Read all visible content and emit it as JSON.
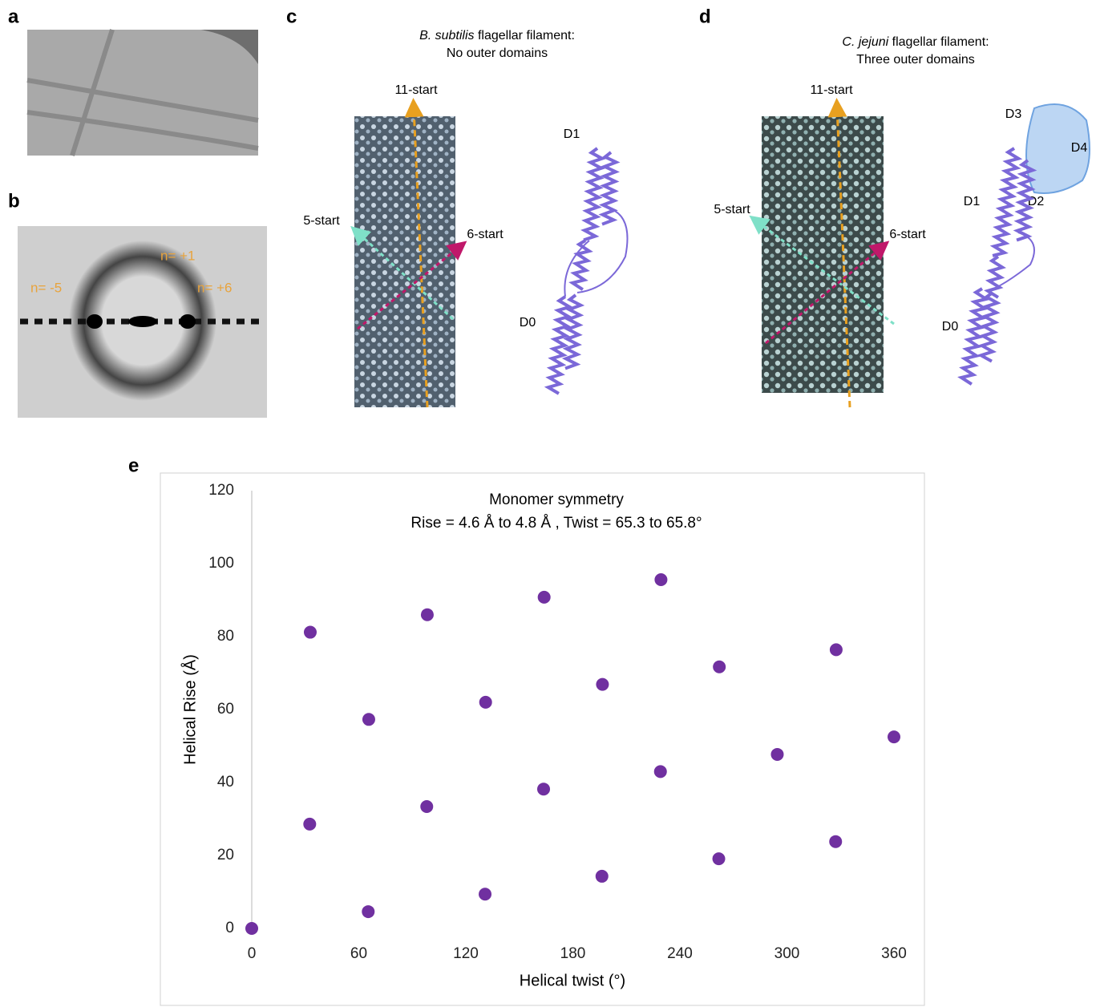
{
  "panels": {
    "a": {
      "label": "a"
    },
    "b": {
      "label": "b",
      "layer_lines": [
        "n= +1",
        "n= -5",
        "n= +6"
      ]
    },
    "c": {
      "label": "c",
      "title_species": "B. subtilis",
      "title_rest": " flagellar filament:",
      "subtitle": "No outer domains",
      "arrows": [
        "11-start",
        "5-start",
        "6-start"
      ],
      "domains": [
        "D1",
        "D0"
      ]
    },
    "d": {
      "label": "d",
      "title_species": "C. jejuni",
      "title_rest": " flagellar filament:",
      "subtitle": "Three outer domains",
      "arrows": [
        "11-start",
        "5-start",
        "6-start"
      ],
      "domains": [
        "D3",
        "D4",
        "D1",
        "D2",
        "D0"
      ]
    },
    "e": {
      "label": "e"
    }
  },
  "chart_data": {
    "type": "scatter",
    "title": "Monomer symmetry",
    "subtitle": "Rise = 4.6 Å to 4.8 Å , Twist = 65.3 to 65.8°",
    "x_label": "Helical twist (°)",
    "y_label": "Helical Rise (Å)",
    "x": [
      0,
      65.3,
      130.8,
      196.3,
      261.8,
      327.3,
      32.5,
      98.1,
      163.6,
      229.1,
      294.6,
      360,
      65.6,
      131.1,
      196.6,
      262.1,
      327.6,
      32.8,
      98.4,
      163.9,
      229.4
    ],
    "values": [
      0,
      4.6,
      9.4,
      14.3,
      19.1,
      23.8,
      28.6,
      33.4,
      38.2,
      43.0,
      47.7,
      52.5,
      57.3,
      62.0,
      66.9,
      71.7,
      76.4,
      81.2,
      86.0,
      90.8,
      95.6
    ],
    "color": "#7030a0",
    "xlim": [
      0,
      360
    ],
    "xticks": [
      0,
      60,
      120,
      180,
      240,
      300,
      360
    ],
    "ylim": [
      0,
      120
    ],
    "yticks": [
      0,
      20,
      40,
      60,
      80,
      100,
      120
    ],
    "grid": false
  }
}
